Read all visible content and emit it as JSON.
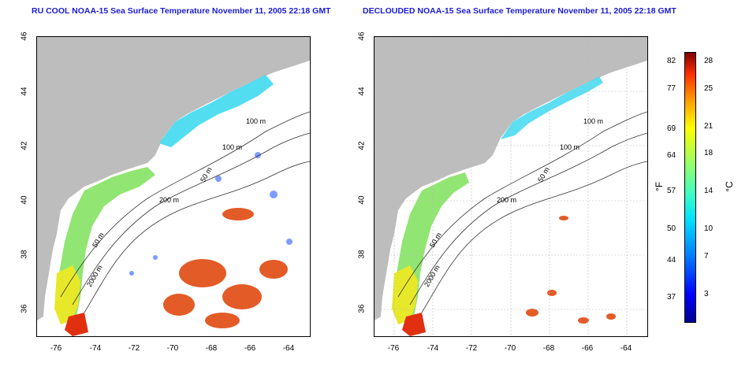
{
  "left_panel": {
    "title": "RU COOL NOAA-15 Sea Surface Temperature November 11, 2005 22:18 GMT",
    "contour_labels": [
      "100 m",
      "100 m",
      "50 m",
      "200 m",
      "50 m",
      "2000 m"
    ]
  },
  "right_panel": {
    "title": "DECLOUDED NOAA-15 Sea Surface Temperature November 11, 2005 22:18 GMT",
    "contour_labels": [
      "100 m",
      "100 m",
      "50 m",
      "200 m",
      "50 m",
      "2000 m"
    ]
  },
  "axes": {
    "lat_ticks": [
      "46",
      "44",
      "42",
      "40",
      "38",
      "36"
    ],
    "lon_ticks": [
      "-76",
      "-74",
      "-72",
      "-70",
      "-68",
      "-66",
      "-64"
    ],
    "lat_range": [
      35,
      46
    ],
    "lon_range": [
      -77,
      -63
    ]
  },
  "colorbar": {
    "fahrenheit_ticks": [
      "82",
      "77",
      "69",
      "64",
      "57",
      "50",
      "44",
      "37"
    ],
    "celsius_ticks": [
      "28",
      "25",
      "21",
      "18",
      "14",
      "10",
      "7",
      "3"
    ],
    "fahrenheit_unit": "°F",
    "celsius_unit": "°C"
  },
  "colors": {
    "title": "#1b1bd6",
    "land": "#bdbdbd",
    "cold": "#0000ff",
    "warm": "#ff3000"
  }
}
